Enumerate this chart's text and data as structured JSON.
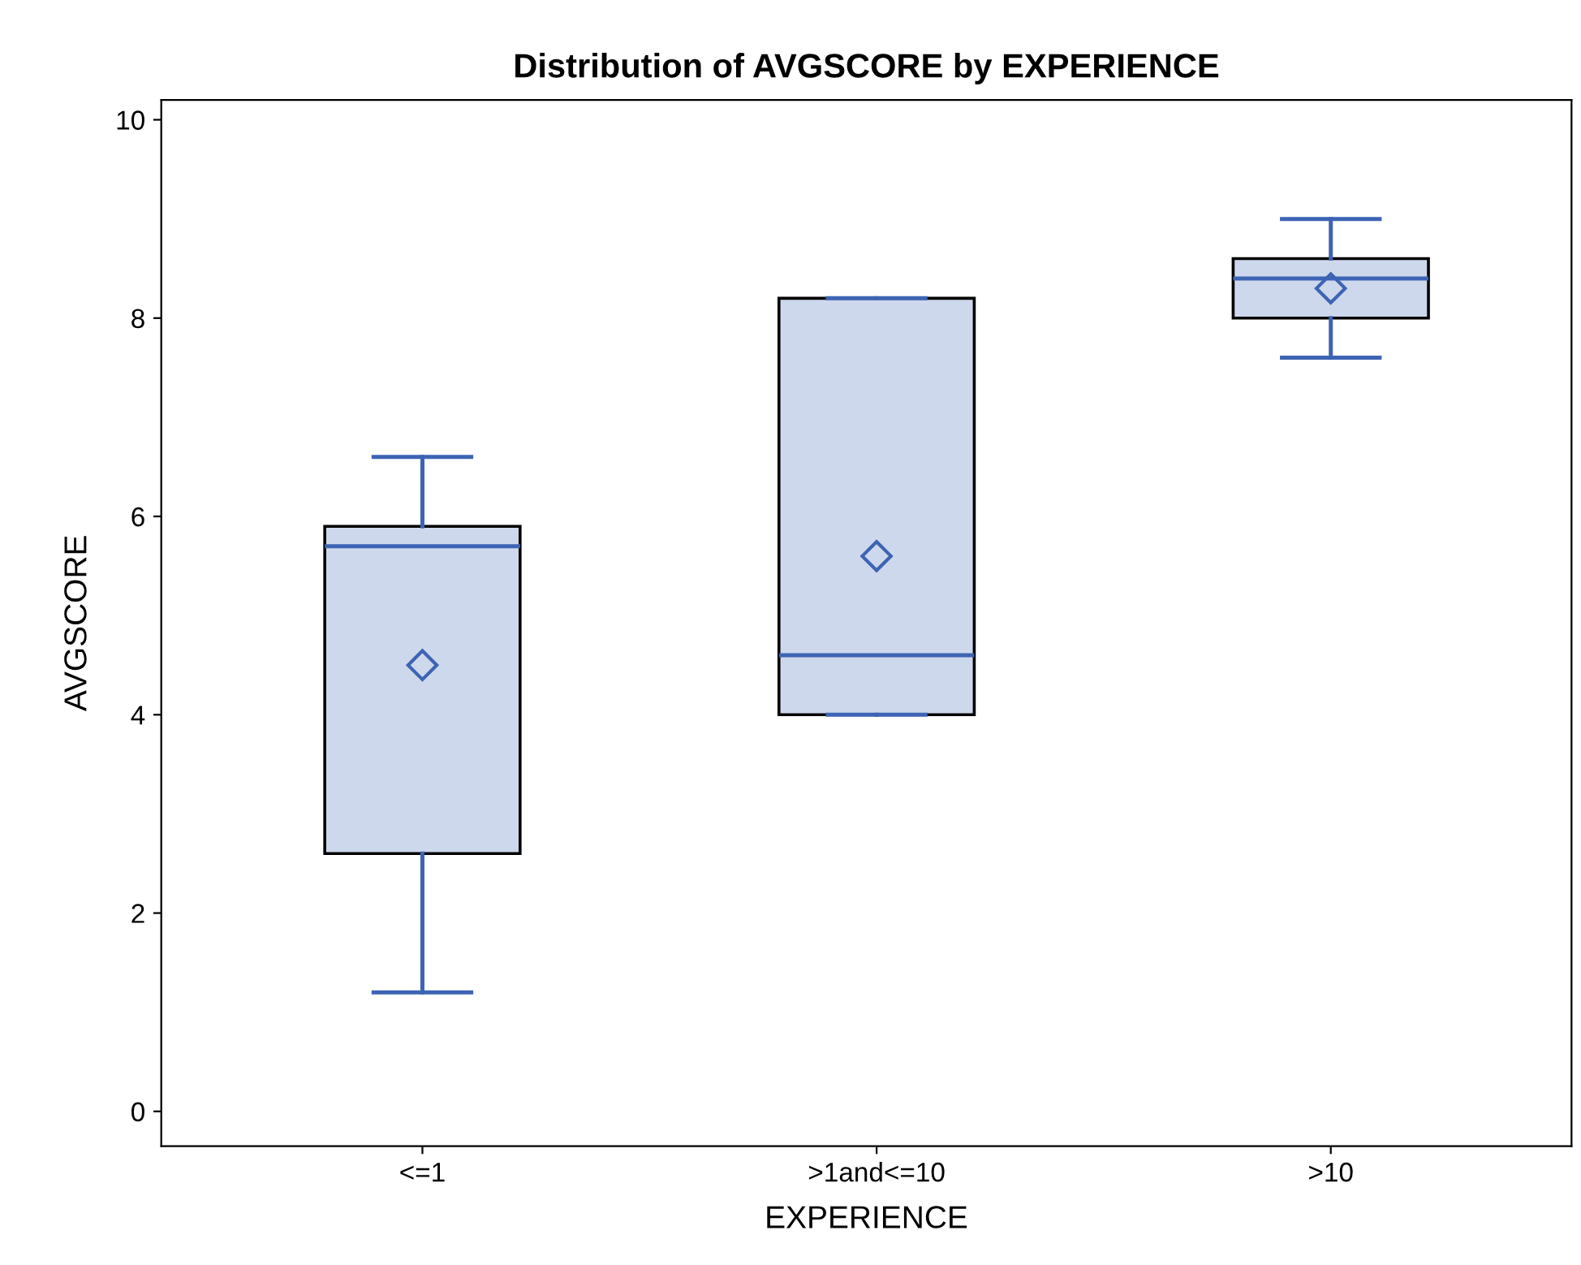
{
  "chart_data": {
    "type": "box",
    "title": "Distribution of AVGSCORE by EXPERIENCE",
    "xlabel": "EXPERIENCE",
    "ylabel": "AVGSCORE",
    "categories": [
      "<=1",
      ">1and<=10",
      ">10"
    ],
    "series": [
      {
        "color": "#3d64b4",
        "boxes": [
          {
            "low": 1.2,
            "q1": 2.6,
            "median": 5.7,
            "q3": 5.9,
            "high": 6.6,
            "mean": 4.5
          },
          {
            "low": 4.0,
            "q1": 4.0,
            "median": 4.6,
            "q3": 8.2,
            "high": 8.2,
            "mean": 5.6
          },
          {
            "low": 7.6,
            "q1": 8.0,
            "median": 8.4,
            "q3": 8.6,
            "high": 9.0,
            "mean": 8.3
          }
        ]
      }
    ],
    "ylim": [
      -0.35,
      10.2
    ],
    "yticks": [
      0,
      2,
      4,
      6,
      8,
      10
    ],
    "grid": false,
    "marker": "diamond"
  }
}
